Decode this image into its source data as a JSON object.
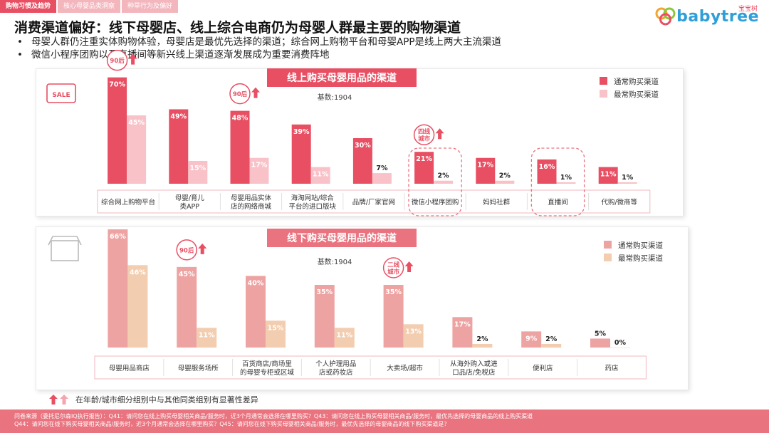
{
  "tabs": [
    "购物习惯及趋势",
    "核心母婴品类洞察",
    "种草行为及偏好"
  ],
  "logo": {
    "text": "babytree",
    "sub": "宝宝树"
  },
  "title": "消费渠道偏好：线下母婴店、线上综合电商仍为母婴人群最主要的购物渠道",
  "bullets": [
    "母婴人群仍注重实体购物体验，母婴店是最优先选择的渠道；综合网上购物平台和母婴APP是线上两大主流渠道",
    "微信小程序团购以及直播间等新兴线上渠道逐渐发展成为重要消费阵地"
  ],
  "colors": {
    "accent": "#e84f63",
    "online_usual": "#e84f63",
    "online_pref": "#f9c2c9",
    "offline_usual": "#eea3a3",
    "offline_pref": "#f2cdb0",
    "footer": "#e9737f",
    "arrow": "#e8737f"
  },
  "chart_data": [
    {
      "type": "bar",
      "title": "线上购买母婴用品的渠道",
      "base": "基数:1904",
      "categories": [
        "综合网上购物平台",
        "母婴/育儿类APP",
        "母婴用品实体店的网络商城",
        "海淘网站/综合平台的进口版块",
        "品牌/厂家官网",
        "微信小程序团购",
        "妈妈社群",
        "直播间",
        "代购/微商等"
      ],
      "series": [
        {
          "name": "通常购买渠道",
          "values": [
            70,
            49,
            48,
            39,
            30,
            21,
            17,
            16,
            11
          ]
        },
        {
          "name": "最常购买渠道",
          "values": [
            45,
            15,
            17,
            11,
            7,
            2,
            2,
            1,
            1
          ]
        }
      ],
      "annotations": [
        {
          "category_index": 0,
          "label": "90后",
          "shape": "circle"
        },
        {
          "category_index": 2,
          "label": "90后",
          "shape": "circle"
        },
        {
          "category_index": 5,
          "label": "四线城市",
          "shape": "circle"
        }
      ],
      "highlight_boxes": [
        5,
        7
      ],
      "ylim": [
        0,
        75
      ],
      "legend": "top-right",
      "icon": "SALE"
    },
    {
      "type": "bar",
      "title": "线下购买母婴用品的渠道",
      "base": "基数:1904",
      "categories": [
        "母婴用品商店",
        "母婴服务场所",
        "百货商店/商场里的母婴专柜或区域",
        "个人护理用品店或药妆店",
        "大卖场/超市",
        "从海外购入或进口品店/免税店",
        "便利店",
        "药店"
      ],
      "series": [
        {
          "name": "通常购买渠道",
          "values": [
            66,
            45,
            40,
            35,
            35,
            17,
            9,
            5
          ]
        },
        {
          "name": "最常购买渠道",
          "values": [
            46,
            11,
            15,
            11,
            13,
            2,
            2,
            0
          ]
        }
      ],
      "annotations": [
        {
          "category_index": 1,
          "label": "90后",
          "shape": "circle"
        },
        {
          "category_index": 4,
          "label": "二线城市",
          "shape": "circle"
        }
      ],
      "ylim": [
        0,
        70
      ],
      "legend": "top-right"
    }
  ],
  "note": "在年龄/城市细分组别中与其他同类组别有显著性差异",
  "footer": [
    "问卷来源（委托尼尔森IQ执行报告）：Q41：请问您在线上购买母婴相关商品/服务时，近3个月通常会选择在哪里购买？Q43：请问您在线上购买母婴相关商品/服务时，最优先选择的母婴商品的线上购买渠道",
    "Q44：请问您在线下购买母婴相关商品/服务时，近3个月通常会选择在哪里购买？Q45：请问您在线下购买母婴相关商品/服务时，最优先选择的母婴商品的线下购买渠道是？"
  ]
}
